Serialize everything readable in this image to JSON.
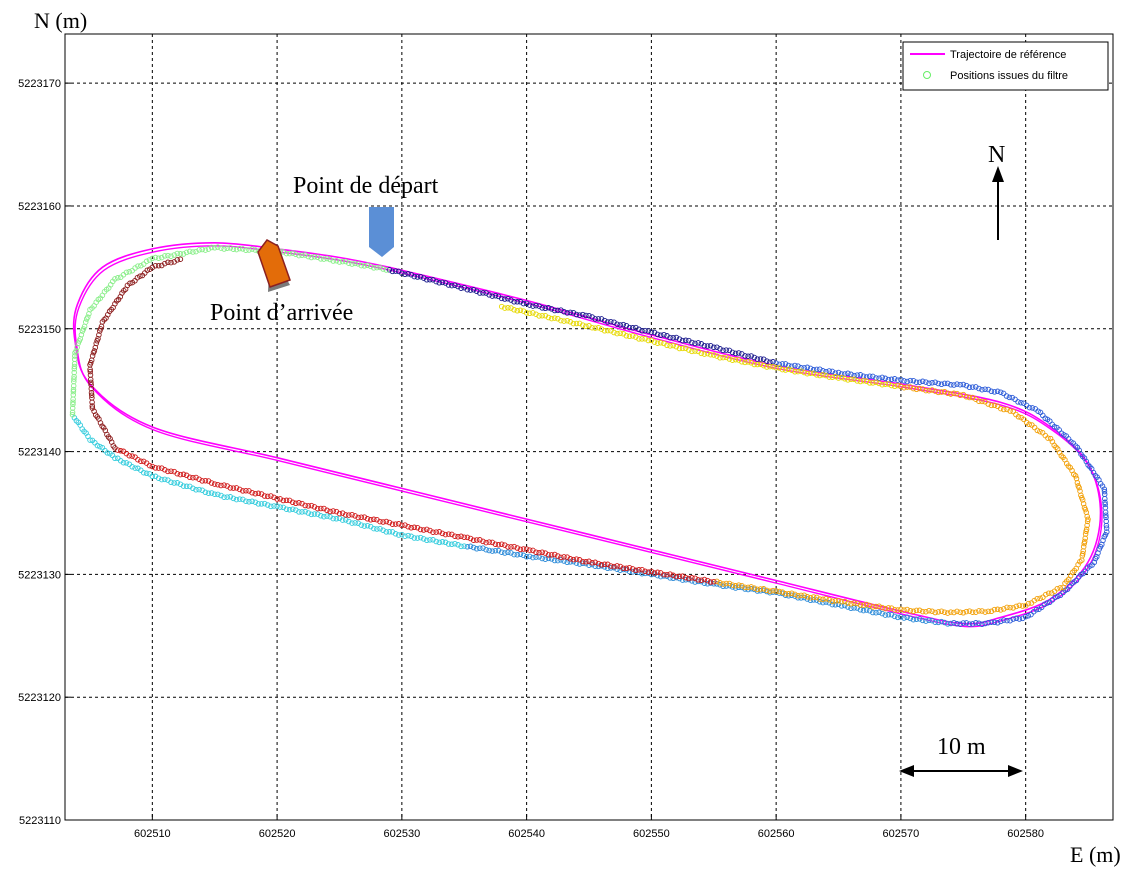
{
  "chart_data": {
    "type": "scatter",
    "title": "",
    "xlabel": "E (m)",
    "ylabel": "N (m)",
    "xlim": [
      602503,
      602587
    ],
    "ylim": [
      5223110,
      5223174
    ],
    "grid": true,
    "legend_position": "top-right",
    "x_ticks": [
      602510,
      602520,
      602530,
      602540,
      602550,
      602560,
      602570,
      602580
    ],
    "y_ticks": [
      5223110,
      5223120,
      5223130,
      5223140,
      5223150,
      5223160,
      5223170
    ],
    "legend": [
      {
        "label": "Trajectoire de référence",
        "color": "#ff00ff",
        "kind": "line"
      },
      {
        "label": "Positions issues du filtre",
        "color": "#66ee66",
        "kind": "marker"
      }
    ],
    "reference_trajectory": {
      "name": "Trajectoire de référence",
      "color": "#ff00ff",
      "x": [
        602529,
        602540,
        602550,
        602560,
        602570,
        602578,
        602582,
        602585,
        602586,
        602585,
        602582,
        602578,
        602575,
        602570,
        602560,
        602550,
        602540,
        602530,
        602520,
        602510,
        602505,
        602503.8,
        602504,
        602506,
        602510,
        602515,
        602520,
        602525,
        602529
      ],
      "y": [
        5223155,
        5223152.3,
        5223149.5,
        5223147,
        5223145.5,
        5223144,
        5223142,
        5223139,
        5223135,
        5223131,
        5223128,
        5223126.5,
        5223126,
        5223127,
        5223129.5,
        5223132,
        5223134.5,
        5223137,
        5223139.5,
        5223142,
        5223145.5,
        5223149,
        5223152,
        5223155,
        5223156.5,
        5223157,
        5223156.5,
        5223155.8,
        5223155
      ]
    },
    "filter_positions": [
      {
        "color": "#1a1a8c",
        "x": [
          602529,
          602535,
          602540,
          602545,
          602550,
          602555,
          602560
        ],
        "y": [
          5223154.8,
          5223153.3,
          5223152,
          5223151,
          5223149.7,
          5223148.5,
          5223147.2
        ]
      },
      {
        "color": "#2a5ad8",
        "x": [
          602560,
          602565,
          602570,
          602575,
          602578,
          602581,
          602584,
          602586.3,
          602586.5,
          602585.5,
          602583,
          602580,
          602577,
          602574
        ],
        "y": [
          5223147.2,
          5223146.4,
          5223145.8,
          5223145.4,
          5223144.8,
          5223143.3,
          5223140.5,
          5223137,
          5223133.5,
          5223131,
          5223128.5,
          5223126.5,
          5223126,
          5223126
        ]
      },
      {
        "color": "#2a8ad8",
        "x": [
          602574,
          602570,
          602565,
          602560,
          602555,
          602550,
          602545,
          602540,
          602537,
          602535
        ],
        "y": [
          5223126,
          5223126.5,
          5223127.5,
          5223128.5,
          5223129.2,
          5223130,
          5223130.8,
          5223131.5,
          5223132,
          5223132.3
        ]
      },
      {
        "color": "#33ccdd",
        "x": [
          602535,
          602530,
          602525,
          602520,
          602515,
          602510,
          602507,
          602505,
          602503.6
        ],
        "y": [
          5223132.3,
          5223133.2,
          5223134.5,
          5223135.5,
          5223136.5,
          5223138,
          5223139.5,
          5223141,
          5223143
        ]
      },
      {
        "color": "#88ee88",
        "x": [
          602503.6,
          602503.8,
          602505,
          602507,
          602510,
          602515,
          602520,
          602525,
          602529
        ],
        "y": [
          5223143,
          5223148,
          5223151.5,
          5223154,
          5223155.7,
          5223156.6,
          5223156.3,
          5223155.5,
          5223154.8
        ]
      },
      {
        "color": "#e6d800",
        "x": [
          602538,
          602545,
          602550,
          602555,
          602560,
          602565,
          602570
        ],
        "y": [
          5223151.8,
          5223150.2,
          5223149,
          5223147.8,
          5223146.8,
          5223146,
          5223145.3
        ]
      },
      {
        "color": "#f29f05",
        "x": [
          602570,
          602575,
          602579,
          602582,
          602584,
          602585,
          602584.5,
          602583,
          602580,
          602577,
          602574,
          602570,
          602565,
          602560,
          602555
        ],
        "y": [
          5223145.3,
          5223144.6,
          5223143.2,
          5223141,
          5223138,
          5223134.5,
          5223131.2,
          5223129,
          5223127.5,
          5223127,
          5223126.9,
          5223127.1,
          5223127.8,
          5223128.6,
          5223129.4
        ]
      },
      {
        "color": "#d01818",
        "x": [
          602555,
          602550,
          602545,
          602540,
          602535,
          602530,
          602525,
          602520,
          602515,
          602510,
          602507
        ],
        "y": [
          5223129.4,
          5223130.2,
          5223131,
          5223132,
          5223133,
          5223134,
          5223135,
          5223136.2,
          5223137.4,
          5223138.8,
          5223140.3
        ]
      },
      {
        "color": "#8b1a1a",
        "x": [
          602507,
          602505.2,
          602505,
          602506,
          602508,
          602510,
          602512.5
        ],
        "y": [
          5223140.3,
          5223143.5,
          5223147,
          5223150.5,
          5223153.5,
          5223155,
          5223155.7
        ]
      }
    ],
    "annotations": {
      "start_label": "Point de départ",
      "end_label": "Point d’arrivée",
      "north_label": "N",
      "scale_label": "10 m"
    },
    "markers": {
      "start_color": "#5b8fd6",
      "end_color": "#e36c09"
    }
  }
}
